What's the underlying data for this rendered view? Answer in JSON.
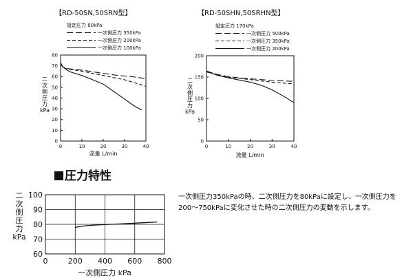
{
  "chart_data": [
    {
      "type": "line",
      "title": "【RD-50SN,50SRN型】",
      "subtitle": "設定圧力 80kPa",
      "xlabel": "流量 L/min",
      "ylabel": "二次側圧力 kPa",
      "xlim": [
        0,
        40
      ],
      "ylim": [
        0,
        80
      ],
      "xticks": [
        "0",
        "10",
        "20",
        "30",
        "40"
      ],
      "yticks": [
        "0",
        "10",
        "20",
        "30",
        "40",
        "50",
        "60",
        "70",
        "80"
      ],
      "legend_position": "top",
      "series": [
        {
          "name": "一次側圧力 350kPa",
          "style": "long-dash",
          "x": [
            0,
            1,
            3,
            5,
            10,
            15,
            20,
            25,
            30,
            35,
            40
          ],
          "y": [
            72,
            69,
            67.5,
            67,
            66,
            64.5,
            63,
            61.5,
            60.5,
            59.5,
            58
          ]
        },
        {
          "name": "一次側圧力 200kPa",
          "style": "dash",
          "x": [
            0,
            1,
            3,
            5,
            10,
            15,
            20,
            25,
            30,
            35,
            40
          ],
          "y": [
            72,
            69,
            67,
            66.5,
            65,
            63,
            61,
            59,
            57,
            54,
            51
          ]
        },
        {
          "name": "一次側圧力 100kPa",
          "style": "solid",
          "x": [
            0,
            1,
            3,
            5,
            10,
            15,
            20,
            25,
            30,
            35,
            38
          ],
          "y": [
            73,
            69,
            66,
            64,
            61,
            57,
            53,
            46,
            39,
            32,
            29
          ]
        }
      ]
    },
    {
      "type": "line",
      "title": "【RD-50SHN,50SRHN型】",
      "subtitle": "設定圧力 170kPa",
      "xlabel": "流量 L/min",
      "ylabel": "二次側圧力 kPa",
      "xlim": [
        0,
        40
      ],
      "ylim": [
        0,
        200
      ],
      "xticks": [
        "0",
        "10",
        "20",
        "30",
        "40"
      ],
      "yticks": [
        "0",
        "50",
        "100",
        "150",
        "200"
      ],
      "legend_position": "top",
      "series": [
        {
          "name": "一次側圧力 500kPa",
          "style": "long-dash",
          "x": [
            0,
            5,
            10,
            15,
            20,
            25,
            30,
            35,
            40
          ],
          "y": [
            164,
            156,
            151,
            148,
            146,
            144,
            142,
            141,
            140
          ]
        },
        {
          "name": "一次側圧力 350kPa",
          "style": "dash",
          "x": [
            0,
            5,
            10,
            15,
            20,
            25,
            30,
            35,
            40
          ],
          "y": [
            162,
            155,
            150,
            147,
            144,
            141,
            138,
            136,
            134
          ]
        },
        {
          "name": "一次側圧力 200kPa",
          "style": "solid",
          "x": [
            0,
            5,
            10,
            15,
            20,
            25,
            30,
            35,
            40
          ],
          "y": [
            163,
            154,
            148,
            143,
            138,
            131,
            120,
            106,
            90
          ]
        }
      ]
    },
    {
      "type": "line",
      "title": "",
      "xlabel": "一次側圧力 kPa",
      "ylabel": "二次側圧力 kPa",
      "xlim": [
        0,
        800
      ],
      "ylim": [
        60,
        100
      ],
      "xticks": [
        "0",
        "200",
        "400",
        "600",
        "800"
      ],
      "yticks": [
        "60",
        "70",
        "80",
        "90",
        "100"
      ],
      "grid": true,
      "series": [
        {
          "x": [
            200,
            250,
            300,
            400,
            500,
            600,
            700,
            750
          ],
          "y": [
            78,
            78.8,
            79.3,
            79.8,
            80.3,
            80.8,
            81.3,
            81.6
          ]
        }
      ]
    }
  ],
  "section": {
    "heading": "圧力特性",
    "description": "一次側圧力350kPaの時、二次側圧力を80kPaに設定し、一次側圧力を200～750kPaに変化させた時の二次側圧力の変動を示します。"
  }
}
